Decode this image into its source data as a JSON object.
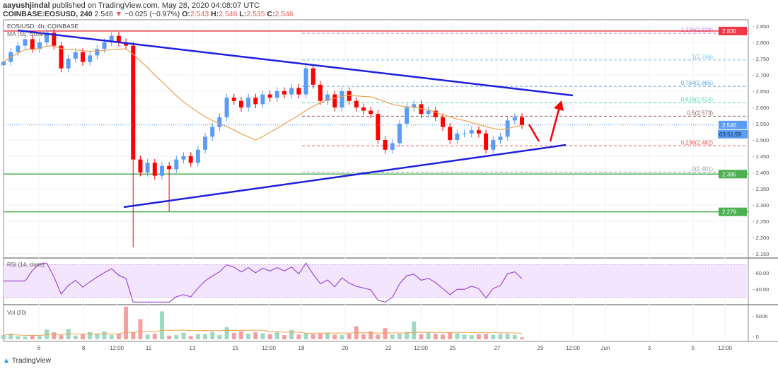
{
  "header": {
    "author": "aayushjindal",
    "published": "published on TradingView.com, May 28, 2020 04:08:07 UTC",
    "symbol": "COINBASE:EOSUSD, 240",
    "last": "2.546",
    "change": "−0.025 (−0.97%)",
    "o_label": "O:",
    "o": "2.543",
    "h_label": "H:",
    "h": "2.546",
    "l_label": "L:",
    "l": "2.535",
    "c_label": "C:",
    "c": "2.546"
  },
  "footer": {
    "brand": "TradingView"
  },
  "chart_data": {
    "type": "candlestick",
    "title": "EOS/USD, 4h, COINBASE",
    "indicator_label": "MA (55, close)",
    "colors": {
      "up": "#5b9cf6",
      "down": "#ff0000",
      "ma": "#f0a050",
      "trend": "#1f1fe0",
      "resistance": "#f23645",
      "support": "#4caf50",
      "rsi": "#9c4dd4",
      "rsi_band": "#f3e5fd",
      "vol_up": "#9ed9c0",
      "vol_down": "#f5a0a0"
    },
    "closes": [
      2.74,
      2.77,
      2.79,
      2.81,
      2.78,
      2.8,
      2.83,
      2.79,
      2.72,
      2.75,
      2.77,
      2.74,
      2.76,
      2.78,
      2.8,
      2.82,
      2.8,
      2.79,
      2.44,
      2.4,
      2.43,
      2.39,
      2.42,
      2.41,
      2.44,
      2.45,
      2.43,
      2.47,
      2.51,
      2.54,
      2.57,
      2.63,
      2.62,
      2.6,
      2.63,
      2.61,
      2.64,
      2.63,
      2.65,
      2.64,
      2.66,
      2.64,
      2.72,
      2.67,
      2.62,
      2.64,
      2.6,
      2.65,
      2.62,
      2.6,
      2.59,
      2.58,
      2.5,
      2.47,
      2.49,
      2.55,
      2.6,
      2.61,
      2.58,
      2.59,
      2.57,
      2.54,
      2.5,
      2.52,
      2.52,
      2.53,
      2.52,
      2.47,
      2.5,
      2.51,
      2.56,
      2.57,
      2.546
    ],
    "volume": [
      90,
      120,
      70,
      60,
      80,
      70,
      210,
      150,
      90,
      220,
      80,
      120,
      160,
      110,
      170,
      90,
      120,
      700,
      150,
      430,
      100,
      120,
      600,
      80,
      90,
      140,
      70,
      110,
      110,
      160,
      90,
      260,
      140,
      170,
      120,
      150,
      130,
      110,
      150,
      90,
      200,
      100,
      130,
      110,
      120,
      140,
      100,
      90,
      120,
      280,
      110,
      170,
      100,
      240,
      100,
      120,
      160,
      380,
      110,
      140,
      120,
      100,
      150,
      130,
      100,
      90,
      110,
      120,
      100,
      110,
      120,
      90,
      40
    ],
    "price_axis": {
      "ticks": [
        "2.850",
        "2.800",
        "2.750",
        "2.700",
        "2.650",
        "2.600",
        "2.550",
        "2.500",
        "2.450",
        "2.400",
        "2.350",
        "2.300",
        "2.250",
        "2.200",
        "2.150"
      ],
      "range": [
        2.15,
        2.85
      ]
    },
    "time_axis": [
      "6",
      "8",
      "12:00",
      "11",
      "13",
      "15",
      "12:00",
      "18",
      "20",
      "22",
      "12:00",
      "25",
      "27",
      "29",
      "12:00",
      "Jun",
      "3",
      "5",
      "12:00"
    ],
    "horizontal_levels": [
      {
        "value": 2.835,
        "label": "2.835",
        "color": "#f23645"
      },
      {
        "value": 2.395,
        "label": "2.395",
        "color": "#4caf50"
      },
      {
        "value": 2.279,
        "label": "2.279",
        "color": "#4caf50"
      }
    ],
    "current_price": {
      "label": "2.546",
      "countdown": "03:51:59"
    },
    "fib_levels": [
      {
        "value": 2.828,
        "label": "1.236(2.828)",
        "color": "#c77ddb"
      },
      {
        "value": 2.746,
        "label": "1(2.746)",
        "color": "#7ec8e3"
      },
      {
        "value": 2.665,
        "label": "0.764(2.665)",
        "color": "#5fa8e8"
      },
      {
        "value": 2.614,
        "label": "0.618(2.614)",
        "color": "#55d6a8"
      },
      {
        "value": 2.573,
        "label": "0.5(2.573)",
        "color": "#8a5a5a"
      },
      {
        "value": 2.482,
        "label": "0.236(2.482)",
        "color": "#ef5350"
      },
      {
        "value": 2.401,
        "label": "0(2.401)",
        "color": "#999999"
      }
    ],
    "rsi": {
      "label": "RSI (14, close)",
      "ticks": [
        "60.00",
        "40.00"
      ],
      "bands": [
        70,
        30
      ]
    },
    "vol": {
      "label": "Vol (20)",
      "ticks": [
        "500K",
        "0"
      ]
    }
  }
}
